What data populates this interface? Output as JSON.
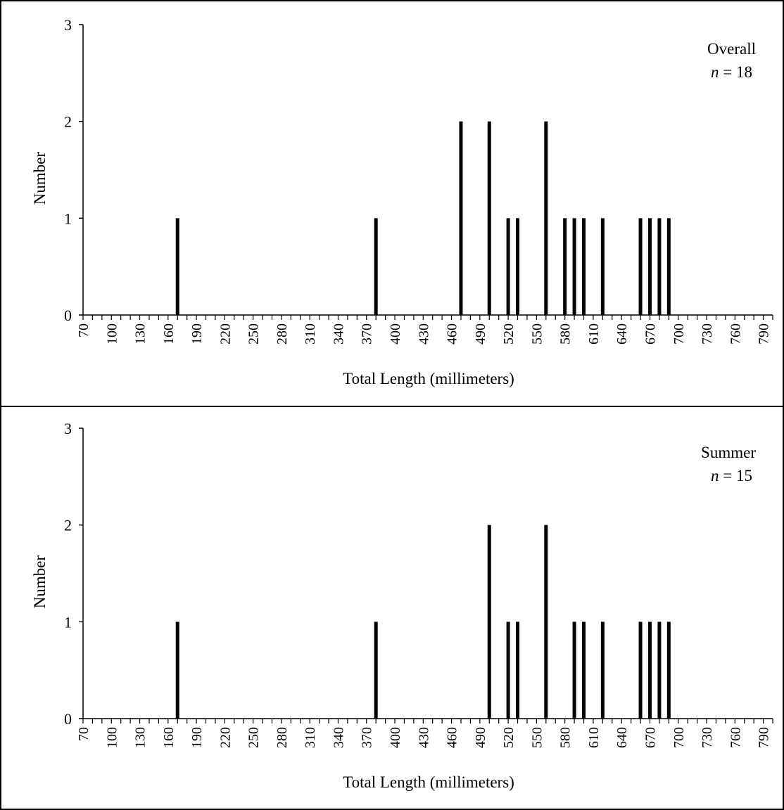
{
  "chart_data": [
    {
      "type": "bar",
      "xlabel": "Total Length (millimeters)",
      "ylabel": "Number",
      "ylim": [
        0,
        3
      ],
      "yticks": [
        0,
        1,
        2,
        3
      ],
      "x_range": [
        70,
        800
      ],
      "x_tick_labels": [
        "70",
        "100",
        "130",
        "160",
        "190",
        "220",
        "250",
        "280",
        "310",
        "340",
        "370",
        "400",
        "430",
        "460",
        "490",
        "520",
        "550",
        "580",
        "610",
        "640",
        "670",
        "700",
        "730",
        "760",
        "790"
      ],
      "legend_label": "Overall",
      "n_prefix": "n",
      "n_suffix": " = 18",
      "points": [
        {
          "x": 170,
          "y": 1
        },
        {
          "x": 380,
          "y": 1
        },
        {
          "x": 470,
          "y": 2
        },
        {
          "x": 500,
          "y": 2
        },
        {
          "x": 520,
          "y": 1
        },
        {
          "x": 530,
          "y": 1
        },
        {
          "x": 560,
          "y": 2
        },
        {
          "x": 580,
          "y": 1
        },
        {
          "x": 590,
          "y": 1
        },
        {
          "x": 600,
          "y": 1
        },
        {
          "x": 620,
          "y": 1
        },
        {
          "x": 660,
          "y": 1
        },
        {
          "x": 670,
          "y": 1
        },
        {
          "x": 680,
          "y": 1
        },
        {
          "x": 690,
          "y": 1
        }
      ]
    },
    {
      "type": "bar",
      "xlabel": "Total Length (millimeters)",
      "ylabel": "Number",
      "ylim": [
        0,
        3
      ],
      "yticks": [
        0,
        1,
        2,
        3
      ],
      "x_range": [
        70,
        800
      ],
      "x_tick_labels": [
        "70",
        "100",
        "130",
        "160",
        "190",
        "220",
        "250",
        "280",
        "310",
        "340",
        "370",
        "400",
        "430",
        "460",
        "490",
        "520",
        "550",
        "580",
        "610",
        "640",
        "670",
        "700",
        "730",
        "760",
        "790"
      ],
      "legend_label": "Summer",
      "n_prefix": "n",
      "n_suffix": " = 15",
      "points": [
        {
          "x": 170,
          "y": 1
        },
        {
          "x": 380,
          "y": 1
        },
        {
          "x": 500,
          "y": 2
        },
        {
          "x": 520,
          "y": 1
        },
        {
          "x": 530,
          "y": 1
        },
        {
          "x": 560,
          "y": 2
        },
        {
          "x": 590,
          "y": 1
        },
        {
          "x": 600,
          "y": 1
        },
        {
          "x": 620,
          "y": 1
        },
        {
          "x": 660,
          "y": 1
        },
        {
          "x": 670,
          "y": 1
        },
        {
          "x": 680,
          "y": 1
        },
        {
          "x": 690,
          "y": 1
        }
      ]
    }
  ]
}
